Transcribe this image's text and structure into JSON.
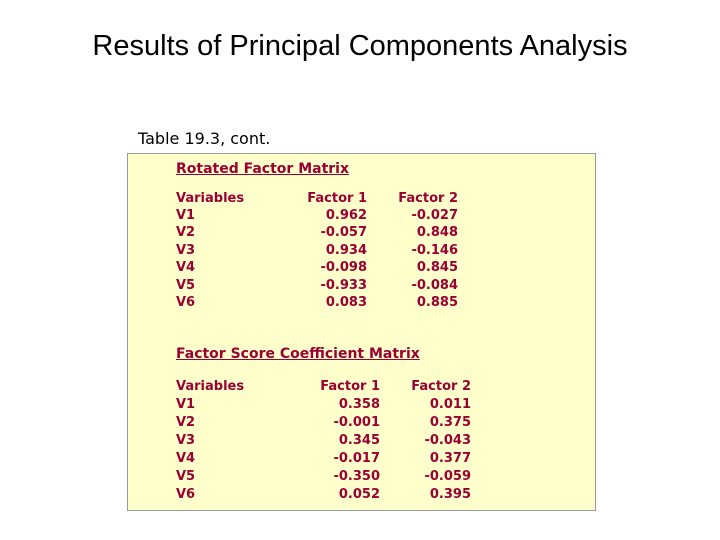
{
  "title": "Results of Principal Components Analysis",
  "caption": "Table 19.3, cont.",
  "tables": [
    {
      "title": "Rotated Factor Matrix",
      "header": [
        "Variables",
        "Factor 1",
        "Factor 2"
      ],
      "rows": [
        [
          "V1",
          "0.962",
          "-0.027"
        ],
        [
          "V2",
          "-0.057",
          "0.848"
        ],
        [
          "V3",
          "0.934",
          "-0.146"
        ],
        [
          "V4",
          "-0.098",
          "0.845"
        ],
        [
          "V5",
          "-0.933",
          "-0.084"
        ],
        [
          "V6",
          "0.083",
          "0.885"
        ]
      ]
    },
    {
      "title": "Factor Score Coefficient Matrix",
      "header": [
        "Variables",
        "Factor 1",
        "Factor 2"
      ],
      "rows": [
        [
          "V1",
          "0.358",
          "0.011"
        ],
        [
          "V2",
          "-0.001",
          "0.375"
        ],
        [
          "V3",
          "0.345",
          "-0.043"
        ],
        [
          "V4",
          "-0.017",
          "0.377"
        ],
        [
          "V5",
          "-0.350",
          "-0.059"
        ],
        [
          "V6",
          "0.052",
          "0.395"
        ]
      ]
    }
  ]
}
